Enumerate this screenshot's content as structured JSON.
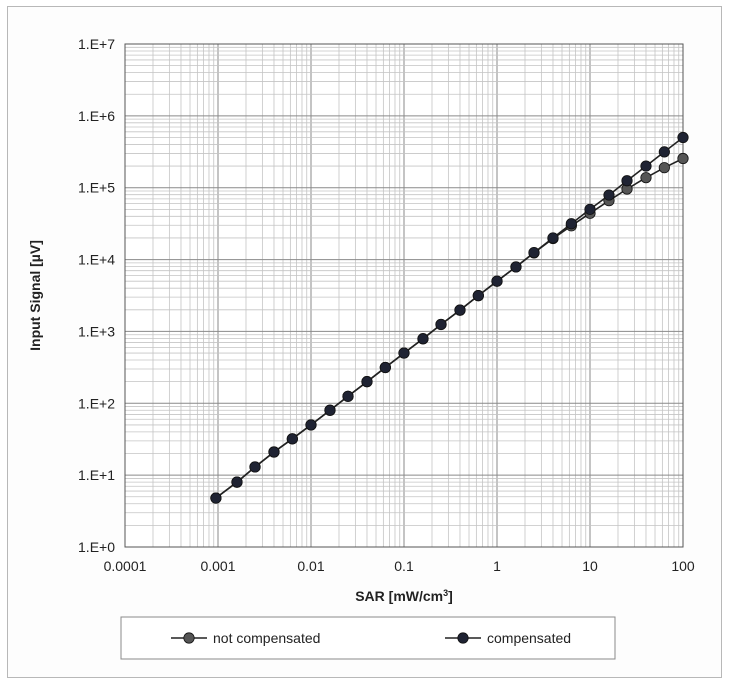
{
  "chart_data": {
    "type": "line",
    "title": "",
    "xlabel": "SAR [mW/cm",
    "xlabel_sup": "3",
    "xlabel_end": "]",
    "ylabel": "Input Signal  [µV]",
    "x_scale": "log",
    "y_scale": "log",
    "xlim": [
      0.0001,
      100
    ],
    "ylim": [
      1,
      10000000
    ],
    "x_ticks": [
      0.0001,
      0.001,
      0.01,
      0.1,
      1,
      10,
      100
    ],
    "x_tick_labels": [
      "0.0001",
      "0.001",
      "0.01",
      "0.1",
      "1",
      "10",
      "100"
    ],
    "y_ticks": [
      1,
      10,
      100,
      1000,
      10000,
      100000,
      1000000,
      10000000
    ],
    "y_tick_labels": [
      "1.E+0",
      "1.E+1",
      "1.E+2",
      "1.E+3",
      "1.E+4",
      "1.E+5",
      "1.E+6",
      "1.E+7"
    ],
    "grid": true,
    "legend": "bottom",
    "series": [
      {
        "name": "not compensated",
        "color": "#555555",
        "x": [
          0.00095,
          0.0016,
          0.0025,
          0.004,
          0.0063,
          0.01,
          0.016,
          0.025,
          0.04,
          0.063,
          0.1,
          0.16,
          0.25,
          0.4,
          0.63,
          1,
          1.6,
          2.5,
          4,
          6.3,
          10,
          16,
          25,
          40,
          63,
          100
        ],
        "y": [
          4.8,
          8,
          13,
          21,
          32,
          50,
          80,
          125,
          200,
          315,
          500,
          790,
          1250,
          1980,
          3150,
          5000,
          7900,
          12400,
          19600,
          29500,
          44000,
          66000,
          96000,
          138000,
          190000,
          255000
        ]
      },
      {
        "name": "compensated",
        "color": "#1f2333",
        "x": [
          0.00095,
          0.0016,
          0.0025,
          0.004,
          0.0063,
          0.01,
          0.016,
          0.025,
          0.04,
          0.063,
          0.1,
          0.16,
          0.25,
          0.4,
          0.63,
          1,
          1.6,
          2.5,
          4,
          6.3,
          10,
          16,
          25,
          40,
          63,
          100
        ],
        "y": [
          4.8,
          8,
          13,
          21,
          32,
          50,
          80,
          125,
          200,
          315,
          500,
          790,
          1250,
          1980,
          3150,
          5000,
          7900,
          12500,
          20000,
          31500,
          50000,
          79000,
          125000,
          200000,
          315000,
          500000
        ]
      }
    ]
  }
}
